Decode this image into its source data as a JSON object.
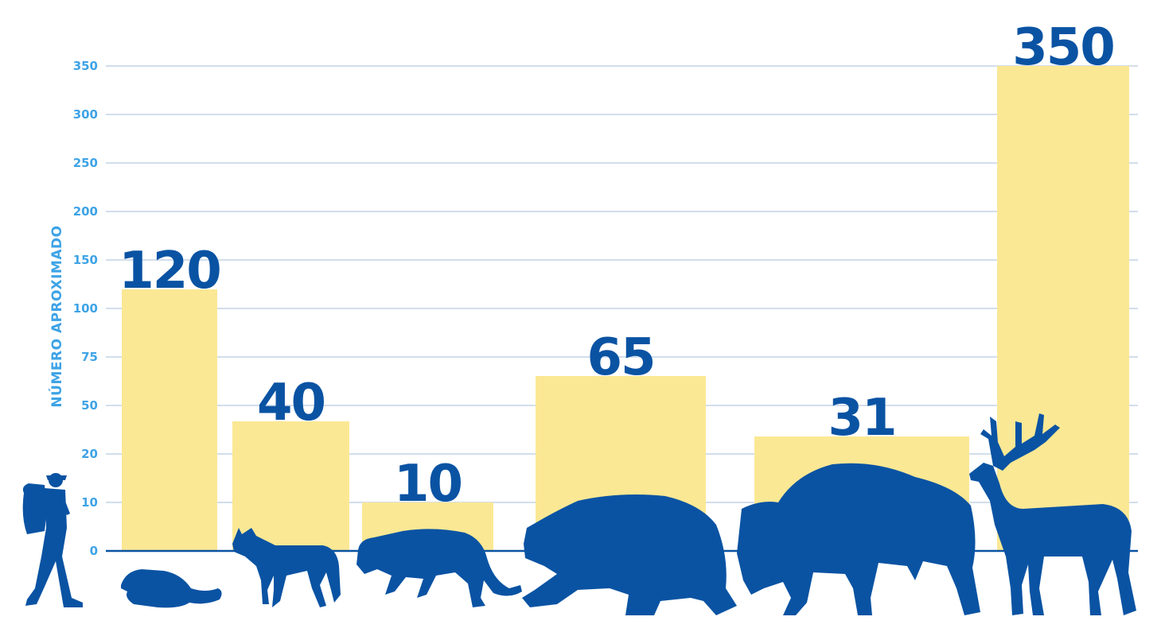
{
  "chart_data": {
    "type": "bar",
    "ylabel": "NÚMERO APROXIMADO",
    "y_ticks": [
      "0",
      "10",
      "20",
      "50",
      "75",
      "100",
      "150",
      "200",
      "250",
      "300",
      "350"
    ],
    "categories": [
      "beaver",
      "wolf",
      "mountain lion",
      "bear",
      "bison",
      "elk"
    ],
    "values": [
      120,
      40,
      10,
      65,
      31,
      350
    ],
    "value_labels": [
      "120",
      "40",
      "10",
      "65",
      "31",
      "350"
    ],
    "icons": [
      "hiker-icon",
      "beaver-icon",
      "wolf-icon",
      "mountain-lion-icon",
      "bear-icon",
      "bison-icon",
      "elk-icon"
    ],
    "grid": true,
    "colors": {
      "bar": "#fbe894",
      "grid": "#c3d4e6",
      "axis": "#0a53a3",
      "tick": "#3ea3e6",
      "value": "#0a53a3",
      "silhouette": "#0a53a3"
    }
  }
}
